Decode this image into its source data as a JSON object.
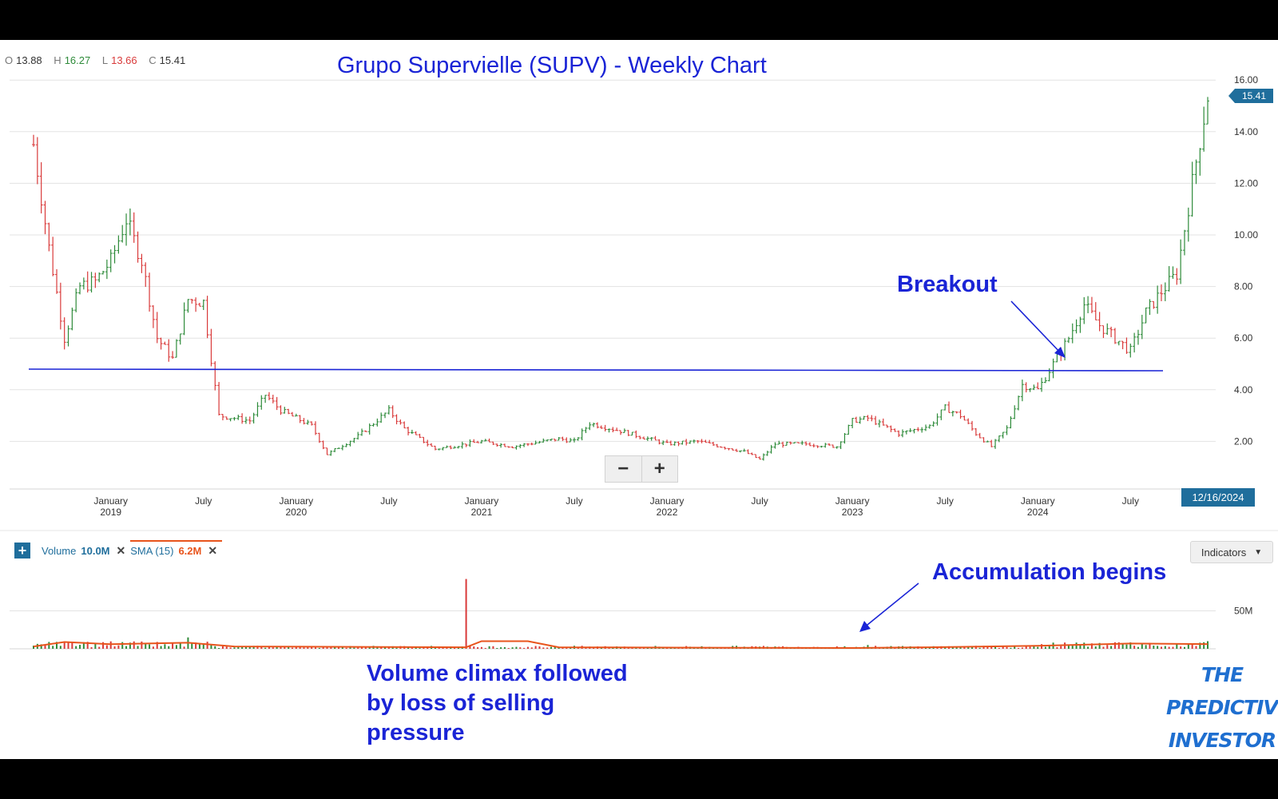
{
  "ohlc": {
    "open_label": "O",
    "open": "13.88",
    "high_label": "H",
    "high": "16.27",
    "low_label": "L",
    "low": "13.66",
    "close_label": "C",
    "close": "15.41"
  },
  "title": "Grupo Supervielle (SUPV) - Weekly Chart",
  "last_price_tag": "15.41",
  "date_tag": "12/16/2024",
  "zoom": {
    "zoom_out": "−",
    "zoom_in": "+"
  },
  "volume_legend": {
    "add_label": "+",
    "volume_label": "Volume",
    "volume_value": "10.0M",
    "sma_label": "SMA (15)",
    "sma_value": "6.2M",
    "remove_label": "✕"
  },
  "indicators_button": "Indicators",
  "annotations": {
    "breakout": "Breakout",
    "accumulation": "Accumulation begins",
    "climax_lines": [
      "Volume climax followed",
      "by loss of selling",
      "pressure"
    ]
  },
  "brand_lines": [
    "THE",
    "PREDICTIVE",
    "INVESTOR"
  ],
  "colors": {
    "up": "#2e8b3a",
    "down": "#d93a3a",
    "annotation": "#1a24d6",
    "sma": "#e8541c",
    "tag": "#1f6e9c"
  },
  "chart_data": {
    "type": "bar",
    "title": "Grupo Supervielle (SUPV) - Weekly Chart",
    "price_axis": {
      "ticks": [
        "2.00",
        "4.00",
        "6.00",
        "8.00",
        "10.00",
        "12.00",
        "14.00",
        "16.00"
      ],
      "ylim": [
        0,
        16.5
      ]
    },
    "volume_axis": {
      "ticks": [
        "50M"
      ]
    },
    "x_ticks": [
      {
        "date": "2019-01",
        "month": "January",
        "year": "2019"
      },
      {
        "date": "2019-07",
        "month": "July",
        "year": ""
      },
      {
        "date": "2020-01",
        "month": "January",
        "year": "2020"
      },
      {
        "date": "2020-07",
        "month": "July",
        "year": ""
      },
      {
        "date": "2021-01",
        "month": "January",
        "year": "2021"
      },
      {
        "date": "2021-07",
        "month": "July",
        "year": ""
      },
      {
        "date": "2022-01",
        "month": "January",
        "year": "2022"
      },
      {
        "date": "2022-07",
        "month": "July",
        "year": ""
      },
      {
        "date": "2023-01",
        "month": "January",
        "year": "2023"
      },
      {
        "date": "2023-07",
        "month": "July",
        "year": ""
      },
      {
        "date": "2024-01",
        "month": "January",
        "year": "2024"
      },
      {
        "date": "2024-07",
        "month": "July",
        "year": ""
      }
    ],
    "xlim": [
      "2018-08",
      "2024-12"
    ],
    "support_line": {
      "value": 4.8,
      "from": "2018-08",
      "to": "2024-09"
    },
    "close_series": [
      {
        "date": "2018-08",
        "close": 13.5
      },
      {
        "date": "2018-09",
        "close": 9.5
      },
      {
        "date": "2018-10",
        "close": 6.0
      },
      {
        "date": "2018-11",
        "close": 8.0
      },
      {
        "date": "2018-12",
        "close": 8.2
      },
      {
        "date": "2019-01",
        "close": 9.0
      },
      {
        "date": "2019-02",
        "close": 10.6
      },
      {
        "date": "2019-03",
        "close": 9.0
      },
      {
        "date": "2019-04",
        "close": 6.0
      },
      {
        "date": "2019-05",
        "close": 5.2
      },
      {
        "date": "2019-06",
        "close": 7.5
      },
      {
        "date": "2019-07",
        "close": 7.4
      },
      {
        "date": "2019-08",
        "close": 3.0
      },
      {
        "date": "2019-10",
        "close": 2.8
      },
      {
        "date": "2019-11",
        "close": 3.8
      },
      {
        "date": "2019-12",
        "close": 3.2
      },
      {
        "date": "2020-02",
        "close": 2.6
      },
      {
        "date": "2020-03",
        "close": 1.5
      },
      {
        "date": "2020-05",
        "close": 2.2
      },
      {
        "date": "2020-07",
        "close": 3.2
      },
      {
        "date": "2020-08",
        "close": 2.5
      },
      {
        "date": "2020-10",
        "close": 1.7
      },
      {
        "date": "2021-01",
        "close": 2.0
      },
      {
        "date": "2021-03",
        "close": 1.8
      },
      {
        "date": "2021-06",
        "close": 2.1
      },
      {
        "date": "2021-07",
        "close": 2.0
      },
      {
        "date": "2021-08",
        "close": 2.7
      },
      {
        "date": "2021-10",
        "close": 2.4
      },
      {
        "date": "2022-01",
        "close": 1.9
      },
      {
        "date": "2022-03",
        "close": 2.0
      },
      {
        "date": "2022-06",
        "close": 1.6
      },
      {
        "date": "2022-07",
        "close": 1.3
      },
      {
        "date": "2022-08",
        "close": 1.9
      },
      {
        "date": "2022-10",
        "close": 1.9
      },
      {
        "date": "2022-12",
        "close": 1.8
      },
      {
        "date": "2023-01",
        "close": 2.8
      },
      {
        "date": "2023-02",
        "close": 2.9
      },
      {
        "date": "2023-04",
        "close": 2.3
      },
      {
        "date": "2023-06",
        "close": 2.6
      },
      {
        "date": "2023-07",
        "close": 3.3
      },
      {
        "date": "2023-08",
        "close": 3.0
      },
      {
        "date": "2023-09",
        "close": 2.3
      },
      {
        "date": "2023-10",
        "close": 1.8
      },
      {
        "date": "2023-11",
        "close": 2.5
      },
      {
        "date": "2023-12",
        "close": 4.2
      },
      {
        "date": "2024-01",
        "close": 4.0
      },
      {
        "date": "2024-02",
        "close": 5.0
      },
      {
        "date": "2024-03",
        "close": 6.0
      },
      {
        "date": "2024-04",
        "close": 7.3
      },
      {
        "date": "2024-05",
        "close": 6.5
      },
      {
        "date": "2024-06",
        "close": 6.0
      },
      {
        "date": "2024-07",
        "close": 5.5
      },
      {
        "date": "2024-08",
        "close": 7.0
      },
      {
        "date": "2024-09",
        "close": 7.8
      },
      {
        "date": "2024-10",
        "close": 8.5
      },
      {
        "date": "2024-11",
        "close": 12.0
      },
      {
        "date": "2024-12",
        "close": 15.41
      }
    ],
    "volume_highlights": [
      {
        "date": "2018-09",
        "volume": 9
      },
      {
        "date": "2019-06",
        "volume": 15
      },
      {
        "date": "2020-12",
        "volume": 92
      },
      {
        "date": "2023-02",
        "volume": 5
      },
      {
        "date": "2024-12",
        "volume": 10
      }
    ],
    "sma_series": [
      {
        "date": "2018-08",
        "value": 3
      },
      {
        "date": "2018-10",
        "value": 9
      },
      {
        "date": "2019-01",
        "value": 6
      },
      {
        "date": "2019-06",
        "value": 8
      },
      {
        "date": "2019-09",
        "value": 3
      },
      {
        "date": "2020-12",
        "value": 2
      },
      {
        "date": "2021-01",
        "value": 10
      },
      {
        "date": "2021-04",
        "value": 10
      },
      {
        "date": "2021-06",
        "value": 2
      },
      {
        "date": "2023-01",
        "value": 1
      },
      {
        "date": "2023-06",
        "value": 2
      },
      {
        "date": "2024-01",
        "value": 4
      },
      {
        "date": "2024-07",
        "value": 7
      },
      {
        "date": "2024-12",
        "value": 6.2
      }
    ]
  }
}
